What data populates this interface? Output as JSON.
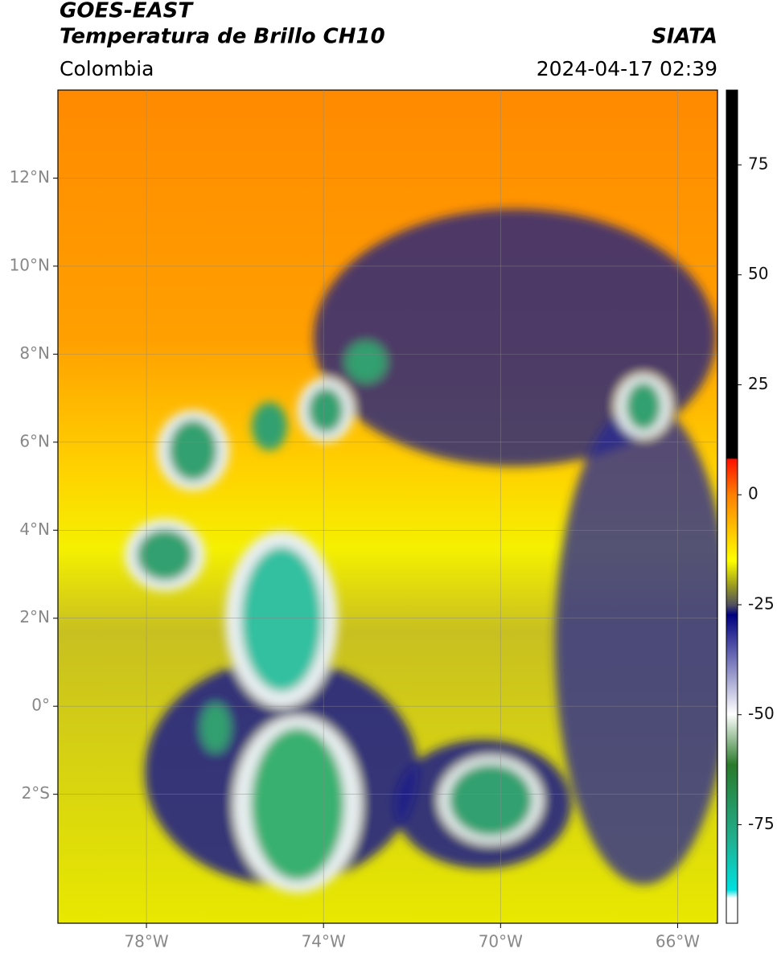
{
  "header": {
    "title1": "GOES-EAST",
    "title2": "Temperatura de Brillo CH10",
    "source": "SIATA",
    "region": "Colombia",
    "datetime": "2024-04-17 02:39"
  },
  "map": {
    "xlim": [
      -80,
      -65.1
    ],
    "ylim": [
      -4.93,
      14
    ],
    "xticks": [
      {
        "value": -78,
        "label": "78°W"
      },
      {
        "value": -74,
        "label": "74°W"
      },
      {
        "value": -70,
        "label": "70°W"
      },
      {
        "value": -66,
        "label": "66°W"
      }
    ],
    "yticks": [
      {
        "value": 12,
        "label": "12°N"
      },
      {
        "value": 10,
        "label": "10°N"
      },
      {
        "value": 8,
        "label": "8°N"
      },
      {
        "value": 6,
        "label": "6°N"
      },
      {
        "value": 4,
        "label": "4°N"
      },
      {
        "value": 2,
        "label": "2°N"
      },
      {
        "value": 0,
        "label": "0°"
      },
      {
        "value": -2,
        "label": "2°S"
      }
    ],
    "grid": true
  },
  "colorbar": {
    "lim": [
      -97.4,
      92
    ],
    "ticks": [
      -75,
      -50,
      -25,
      0,
      25,
      50,
      75
    ]
  }
}
